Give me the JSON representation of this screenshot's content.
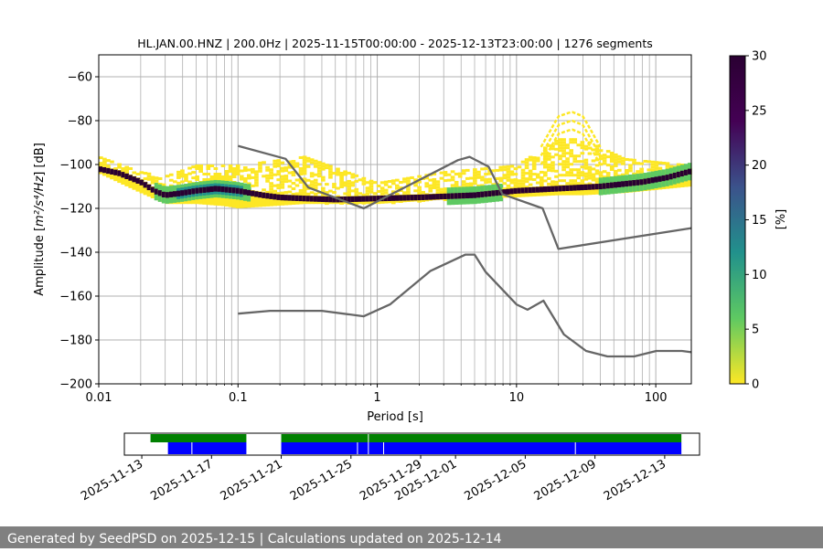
{
  "chart_data": [
    {
      "type": "heatmap",
      "title": "HL.JAN.00.HNZ | 200.0Hz | 2025-11-15T00:00:00 - 2025-12-13T23:00:00 | 1276 segments",
      "xlabel": "Period [s]",
      "ylabel_main": "Amplitude [",
      "ylabel_math": "m²/s⁴/Hz",
      "ylabel_suffix": "] [dB]",
      "x_scale": "log",
      "xlim": [
        0.01,
        180
      ],
      "ylim": [
        -200,
        -50
      ],
      "x_ticks": [
        {
          "value": 0.01,
          "label": "0.01"
        },
        {
          "value": 0.1,
          "label": "0.1"
        },
        {
          "value": 1,
          "label": "1"
        },
        {
          "value": 10,
          "label": "10"
        },
        {
          "value": 100,
          "label": "100"
        }
      ],
      "y_ticks": [
        {
          "value": -60,
          "label": "−60"
        },
        {
          "value": -80,
          "label": "−80"
        },
        {
          "value": -100,
          "label": "−100"
        },
        {
          "value": -120,
          "label": "−120"
        },
        {
          "value": -140,
          "label": "−140"
        },
        {
          "value": -160,
          "label": "−160"
        },
        {
          "value": -180,
          "label": "−180"
        },
        {
          "value": -200,
          "label": "−200"
        }
      ],
      "grid": true,
      "colorbar": {
        "label": "[%]",
        "range": [
          0,
          30
        ],
        "ticks": [
          {
            "value": 0,
            "label": "0"
          },
          {
            "value": 5,
            "label": "5"
          },
          {
            "value": 10,
            "label": "10"
          },
          {
            "value": 15,
            "label": "15"
          },
          {
            "value": 20,
            "label": "20"
          },
          {
            "value": 25,
            "label": "25"
          },
          {
            "value": 30,
            "label": "30"
          }
        ],
        "colormap": [
          "#fde725",
          "#5ec962",
          "#21918c",
          "#3b528b",
          "#440154",
          "#2a0032"
        ]
      },
      "noise_model_high": {
        "name": "",
        "color": "#666666",
        "x": [
          0.1,
          0.22,
          0.32,
          0.8,
          3.8,
          4.6,
          6.3,
          7.9,
          15.4,
          20,
          180
        ],
        "y": [
          -91.5,
          -97.4,
          -110.5,
          -120,
          -98,
          -96.5,
          -101,
          -113.5,
          -120,
          -138.5,
          -129
        ]
      },
      "noise_model_low": {
        "name": "",
        "color": "#666666",
        "x": [
          0.1,
          0.17,
          0.4,
          0.8,
          1.24,
          2.4,
          4.3,
          5,
          6,
          10,
          12,
          15.6,
          21.9,
          31.6,
          45,
          70,
          101,
          154,
          180
        ],
        "y": [
          -168,
          -166.7,
          -166.7,
          -169.2,
          -163.7,
          -148.6,
          -141.1,
          -141.1,
          -149,
          -163.8,
          -166.2,
          -162.1,
          -177.5,
          -185,
          -187.5,
          -187.5,
          -185,
          -185,
          -185.6
        ]
      },
      "mode_curve": {
        "x": [
          0.01,
          0.014,
          0.02,
          0.025,
          0.03,
          0.04,
          0.05,
          0.07,
          0.1,
          0.15,
          0.2,
          0.3,
          0.5,
          1,
          2,
          5,
          10,
          20,
          40,
          80,
          120,
          180
        ],
        "y": [
          -102,
          -104,
          -108,
          -112,
          -114,
          -113,
          -112,
          -111,
          -112,
          -114,
          -115,
          -115.5,
          -116,
          -115.5,
          -115,
          -114,
          -112,
          -111,
          -110,
          -108,
          -106,
          -103
        ]
      },
      "density_spread": [
        {
          "x": 0.01,
          "lower": -104,
          "upper": -96
        },
        {
          "x": 0.02,
          "lower": -113,
          "upper": -103
        },
        {
          "x": 0.03,
          "lower": -118,
          "upper": -105
        },
        {
          "x": 0.05,
          "lower": -118,
          "upper": -100
        },
        {
          "x": 0.08,
          "lower": -119,
          "upper": -100
        },
        {
          "x": 0.1,
          "lower": -120,
          "upper": -100
        },
        {
          "x": 0.3,
          "lower": -118,
          "upper": -96
        },
        {
          "x": 1,
          "lower": -118,
          "upper": -108
        },
        {
          "x": 3,
          "lower": -116,
          "upper": -103
        },
        {
          "x": 10,
          "lower": -115,
          "upper": -100
        },
        {
          "x": 20,
          "lower": -114,
          "upper": -88
        },
        {
          "x": 30,
          "lower": -114,
          "upper": -88
        },
        {
          "x": 60,
          "lower": -113,
          "upper": -97
        },
        {
          "x": 180,
          "lower": -110,
          "upper": -100
        }
      ],
      "density_arc": {
        "x": [
          15,
          20,
          25,
          30,
          40
        ],
        "y": [
          -100,
          -86,
          -84,
          -86,
          -100
        ]
      }
    },
    {
      "type": "timeline",
      "x_start": "2025-11-12",
      "x_end": "2025-12-15",
      "tick_labels": [
        {
          "date": "2025-11-13",
          "label": "2025-11-13"
        },
        {
          "date": "2025-11-17",
          "label": "2025-11-17"
        },
        {
          "date": "2025-11-21",
          "label": "2025-11-21"
        },
        {
          "date": "2025-11-25",
          "label": "2025-11-25"
        },
        {
          "date": "2025-11-29",
          "label": "2025-11-29"
        },
        {
          "date": "2025-12-01",
          "label": "2025-12-01"
        },
        {
          "date": "2025-12-05",
          "label": "2025-12-05"
        },
        {
          "date": "2025-12-09",
          "label": "2025-12-09"
        },
        {
          "date": "2025-12-13",
          "label": "2025-12-13"
        }
      ],
      "data_available": {
        "color": "#008000",
        "segments": [
          {
            "start": "2025-11-13T12:00",
            "end": "2025-11-19T00:00"
          },
          {
            "start": "2025-11-21T00:00",
            "end": "2025-12-13T23:00"
          }
        ]
      },
      "psd_computed": {
        "color": "#0000ff",
        "segments": [
          {
            "start": "2025-11-14T12:00",
            "end": "2025-11-19T00:00"
          },
          {
            "start": "2025-11-21T00:00",
            "end": "2025-12-13T23:00"
          }
        ],
        "gaps": [
          "2025-11-15T21:00",
          "2025-11-25T09:00",
          "2025-11-26T00:00",
          "2025-11-26T21:00",
          "2025-12-07T21:00"
        ]
      }
    }
  ],
  "footer": {
    "text": "Generated by SeedPSD on 2025-12-15 | Calculations updated on 2025-12-14"
  }
}
